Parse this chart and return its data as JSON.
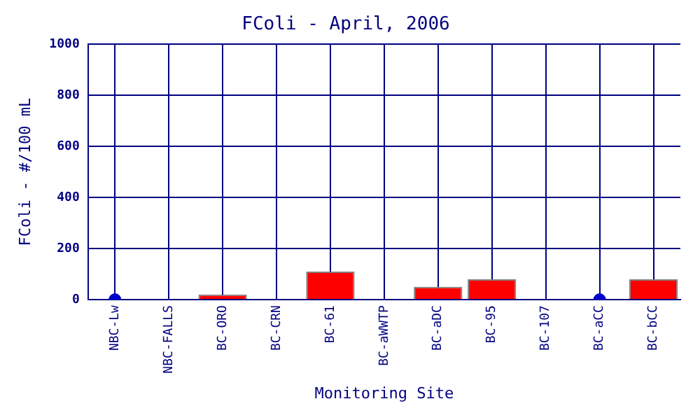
{
  "chart_data": {
    "type": "bar",
    "title": "FColi - April, 2006",
    "xlabel": "Monitoring Site",
    "ylabel": "FColi - #/100 mL",
    "categories": [
      "NBC-Lw",
      "NBC-FALLS",
      "BC-ORO",
      "BC-CRN",
      "BC-61",
      "BC-aWWTP",
      "BC-aDC",
      "BC-95",
      "BC-107",
      "BC-aCC",
      "BC-bCC"
    ],
    "series": [
      {
        "color": "#ff0000",
        "values": [
          null,
          0,
          20,
          0,
          110,
          0,
          50,
          80,
          0,
          null,
          80
        ]
      },
      {
        "type": "scatter",
        "color": "#0000cc",
        "x": [
          "NBC-Lw",
          "BC-aCC"
        ],
        "values": [
          0,
          0
        ]
      }
    ],
    "ylim": [
      0,
      1000
    ],
    "yticks": [
      0,
      200,
      400,
      600,
      800,
      1000
    ],
    "grid": true,
    "legend": false,
    "marker": "circle"
  }
}
